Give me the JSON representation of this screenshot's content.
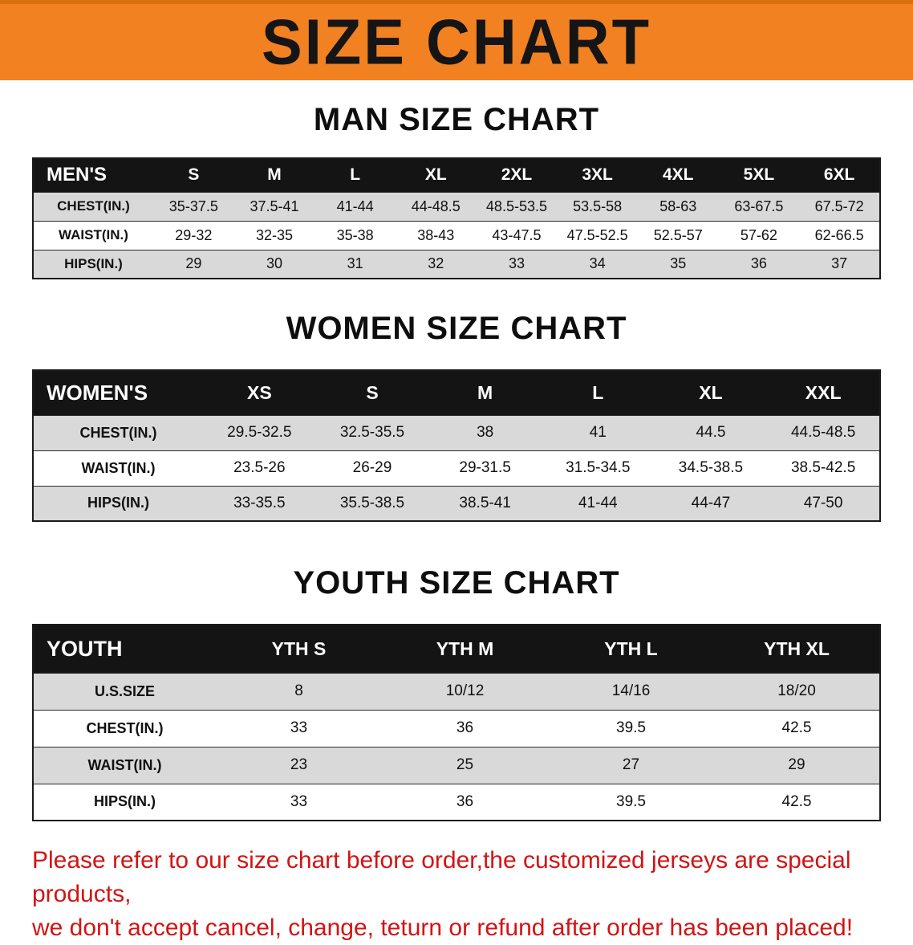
{
  "banner": {
    "title": "SIZE CHART",
    "bg_color": "#f28122"
  },
  "sections": {
    "man_title": "MAN SIZE CHART",
    "women_title": "WOMEN SIZE CHART",
    "youth_title": "YOUTH SIZE CHART"
  },
  "tables": [
    {
      "id": "men",
      "header": [
        "MEN'S",
        "S",
        "M",
        "L",
        "XL",
        "2XL",
        "3XL",
        "4XL",
        "5XL",
        "6XL"
      ],
      "rows": [
        [
          "CHEST(IN.)",
          "35-37.5",
          "37.5-41",
          "41-44",
          "44-48.5",
          "48.5-53.5",
          "53.5-58",
          "58-63",
          "63-67.5",
          "67.5-72"
        ],
        [
          "WAIST(IN.)",
          "29-32",
          "32-35",
          "35-38",
          "38-43",
          "43-47.5",
          "47.5-52.5",
          "52.5-57",
          "57-62",
          "62-66.5"
        ],
        [
          "HIPS(IN.)",
          "29",
          "30",
          "31",
          "32",
          "33",
          "34",
          "35",
          "36",
          "37"
        ]
      ]
    },
    {
      "id": "women",
      "header": [
        "WOMEN'S",
        "XS",
        "S",
        "M",
        "L",
        "XL",
        "XXL"
      ],
      "rows": [
        [
          "CHEST(IN.)",
          "29.5-32.5",
          "32.5-35.5",
          "38",
          "41",
          "44.5",
          "44.5-48.5"
        ],
        [
          "WAIST(IN.)",
          "23.5-26",
          "26-29",
          "29-31.5",
          "31.5-34.5",
          "34.5-38.5",
          "38.5-42.5"
        ],
        [
          "HIPS(IN.)",
          "33-35.5",
          "35.5-38.5",
          "38.5-41",
          "41-44",
          "44-47",
          "47-50"
        ]
      ]
    },
    {
      "id": "youth",
      "header": [
        "YOUTH",
        "YTH S",
        "YTH M",
        "YTH L",
        "YTH XL"
      ],
      "rows": [
        [
          "U.S.SIZE",
          "8",
          "10/12",
          "14/16",
          "18/20"
        ],
        [
          "CHEST(IN.)",
          "33",
          "36",
          "39.5",
          "42.5"
        ],
        [
          "WAIST(IN.)",
          "23",
          "25",
          "27",
          "29"
        ],
        [
          "HIPS(IN.)",
          "33",
          "36",
          "39.5",
          "42.5"
        ]
      ]
    }
  ],
  "footer": {
    "line1": "Please refer to our size chart before order,the customized jerseys are special products,",
    "line2": "we don't accept cancel, change, teturn or refund after order has been placed!"
  }
}
